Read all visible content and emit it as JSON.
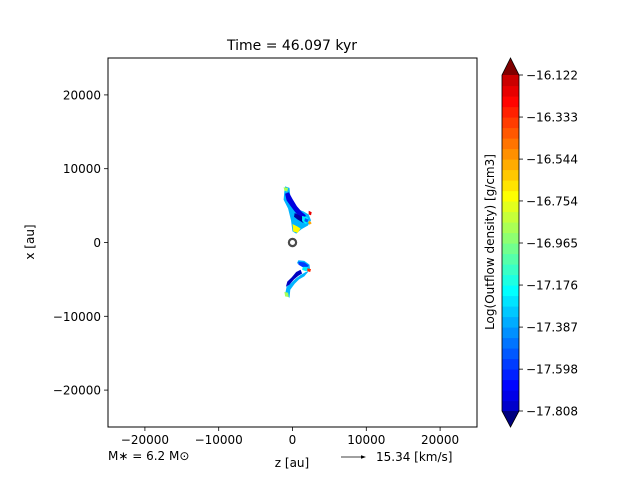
{
  "chart_data": {
    "type": "contour",
    "title": "Time = 46.097 kyr",
    "xlabel": "z [au]",
    "ylabel": "x [au]",
    "xlim": [
      -25000,
      25000
    ],
    "ylim": [
      -25000,
      25000
    ],
    "x_ticks": [
      -20000,
      -10000,
      0,
      10000,
      20000
    ],
    "x_tick_labels": [
      "−20000",
      "−10000",
      "0",
      "10000",
      "20000"
    ],
    "y_ticks": [
      20000,
      10000,
      0,
      -10000,
      -20000
    ],
    "y_tick_labels": [
      "20000",
      "10000",
      "0",
      "−10000",
      "−20000"
    ],
    "colorbar": {
      "label": "Log(Outflow density) [g/cm3]",
      "min": -17.808,
      "max": -16.122,
      "ticks": [
        -16.122,
        -16.333,
        -16.544,
        -16.754,
        -16.965,
        -17.176,
        -17.387,
        -17.598,
        -17.808
      ],
      "tick_labels": [
        "−16.122",
        "−16.333",
        "−16.544",
        "−16.754",
        "−16.965",
        "−17.176",
        "−17.387",
        "−17.598",
        "−17.808"
      ],
      "extend": "both",
      "colormap": "jet"
    },
    "star_marker": {
      "z": 0,
      "x": 0
    },
    "mass_label": "M∗ = 6.2 M⊙",
    "velocity_key_label": "15.34 [km/s]",
    "outflow_lobes": [
      {
        "name": "upper",
        "polygon": [
          [
            -1000,
            7600
          ],
          [
            -400,
            7400
          ],
          [
            -300,
            6300
          ],
          [
            300,
            5200
          ],
          [
            700,
            4500
          ],
          [
            1500,
            4200
          ],
          [
            2200,
            3800
          ],
          [
            2500,
            3000
          ],
          [
            2100,
            2300
          ],
          [
            1200,
            1800
          ],
          [
            500,
            1200
          ],
          [
            0,
            1500
          ],
          [
            -200,
            3000
          ],
          [
            -600,
            4600
          ],
          [
            -1200,
            5800
          ],
          [
            -1100,
            7000
          ]
        ],
        "patches": [
          {
            "value": -17.65,
            "polygon": [
              [
                -1000,
                6600
              ],
              [
                -500,
                6800
              ],
              [
                0,
                5900
              ],
              [
                600,
                4900
              ],
              [
                1300,
                4100
              ],
              [
                1800,
                3700
              ],
              [
                1600,
                3200
              ],
              [
                900,
                3500
              ],
              [
                300,
                4200
              ],
              [
                -300,
                5000
              ],
              [
                -800,
                5700
              ]
            ]
          },
          {
            "value": -17.75,
            "polygon": [
              [
                300,
                4000
              ],
              [
                900,
                3700
              ],
              [
                1500,
                3400
              ],
              [
                1900,
                2900
              ],
              [
                1400,
                2700
              ],
              [
                700,
                3100
              ],
              [
                200,
                3500
              ]
            ]
          },
          {
            "value": -17.2,
            "polygon": [
              [
                1300,
                3600
              ],
              [
                2000,
                3400
              ],
              [
                2300,
                2800
              ],
              [
                1800,
                2500
              ],
              [
                1300,
                2900
              ]
            ]
          },
          {
            "value": -17.45,
            "polygon": [
              [
                1700,
                3300
              ],
              [
                2200,
                3100
              ],
              [
                2000,
                2700
              ],
              [
                1600,
                2900
              ]
            ]
          },
          {
            "value": -16.75,
            "polygon": [
              [
                0,
                2500
              ],
              [
                600,
                2200
              ],
              [
                1100,
                1900
              ],
              [
                700,
                1300
              ],
              [
                100,
                1500
              ]
            ]
          },
          {
            "value": -16.9,
            "polygon": [
              [
                -1200,
                7500
              ],
              [
                -600,
                7400
              ],
              [
                -700,
                6900
              ],
              [
                -1100,
                7000
              ]
            ]
          },
          {
            "value": -16.3,
            "polygon": [
              [
                2200,
                4300
              ],
              [
                2600,
                4100
              ],
              [
                2500,
                3700
              ],
              [
                2200,
                3800
              ]
            ]
          },
          {
            "value": -16.6,
            "polygon": [
              [
                2300,
                3000
              ],
              [
                2600,
                2600
              ],
              [
                2300,
                2400
              ],
              [
                2100,
                2700
              ]
            ]
          }
        ]
      },
      {
        "name": "lower",
        "polygon": [
          [
            800,
            -2400
          ],
          [
            1600,
            -2500
          ],
          [
            2300,
            -3000
          ],
          [
            2400,
            -3800
          ],
          [
            1800,
            -4000
          ],
          [
            1100,
            -4400
          ],
          [
            400,
            -4900
          ],
          [
            -200,
            -5500
          ],
          [
            -800,
            -6000
          ],
          [
            -1000,
            -7000
          ],
          [
            -400,
            -7500
          ],
          [
            -300,
            -6400
          ],
          [
            300,
            -5600
          ],
          [
            900,
            -5000
          ],
          [
            1600,
            -4600
          ],
          [
            2100,
            -4000
          ],
          [
            1900,
            -3500
          ],
          [
            1200,
            -3000
          ],
          [
            600,
            -2800
          ]
        ],
        "patches": [
          {
            "value": -17.7,
            "polygon": [
              [
                -900,
                -6000
              ],
              [
                -400,
                -5700
              ],
              [
                200,
                -5000
              ],
              [
                800,
                -4500
              ],
              [
                1300,
                -4200
              ],
              [
                1100,
                -3700
              ],
              [
                500,
                -4000
              ],
              [
                -100,
                -4700
              ],
              [
                -700,
                -5300
              ]
            ]
          },
          {
            "value": -17.5,
            "polygon": [
              [
                800,
                -2600
              ],
              [
                1600,
                -2700
              ],
              [
                2200,
                -3100
              ],
              [
                1900,
                -3500
              ],
              [
                1300,
                -3300
              ],
              [
                800,
                -3000
              ]
            ]
          },
          {
            "value": -17.2,
            "polygon": [
              [
                1400,
                -3300
              ],
              [
                2000,
                -3300
              ],
              [
                2300,
                -3700
              ],
              [
                1800,
                -3900
              ],
              [
                1300,
                -3700
              ]
            ]
          },
          {
            "value": -16.4,
            "polygon": [
              [
                2000,
                -3500
              ],
              [
                2500,
                -3600
              ],
              [
                2400,
                -4000
              ],
              [
                2000,
                -3900
              ]
            ]
          },
          {
            "value": -16.9,
            "polygon": [
              [
                -1100,
                -6700
              ],
              [
                -600,
                -6800
              ],
              [
                -500,
                -7400
              ],
              [
                -1000,
                -7300
              ]
            ]
          }
        ]
      }
    ]
  }
}
